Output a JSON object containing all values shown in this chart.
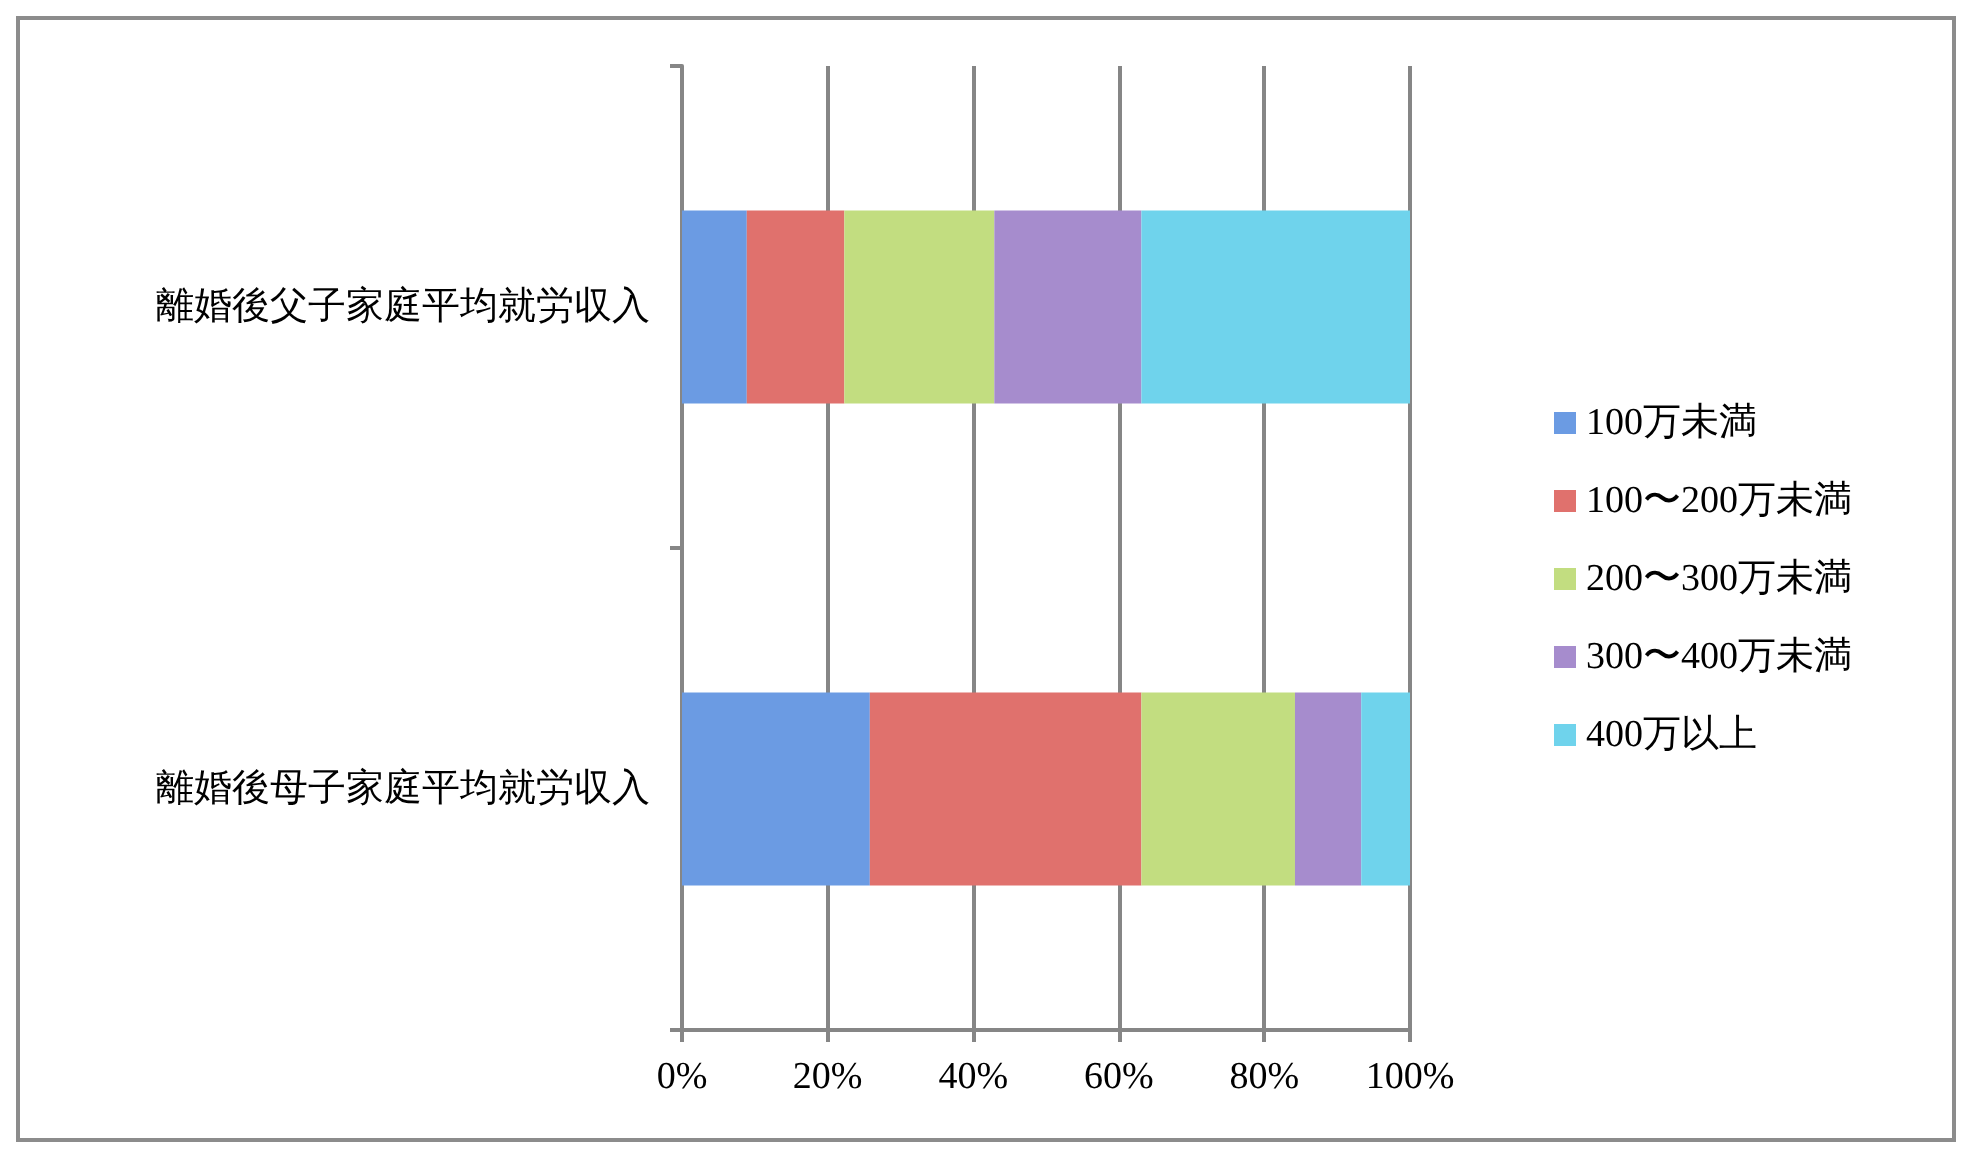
{
  "chart_data": {
    "type": "bar",
    "orientation": "horizontal",
    "stacked": true,
    "categories": [
      "離婚後父子家庭平均就労収入",
      "離婚後母子家庭平均就労収入"
    ],
    "series": [
      {
        "name": "100万未満",
        "color": "#6b9be3",
        "values": [
          8.9,
          25.8
        ]
      },
      {
        "name": "100〜200万未満",
        "color": "#e0716d",
        "values": [
          13.4,
          37.3
        ]
      },
      {
        "name": "200〜300万未満",
        "color": "#c2dd80",
        "values": [
          20.6,
          21.1
        ]
      },
      {
        "name": "300〜400万未満",
        "color": "#a68ccd",
        "values": [
          20.2,
          9.1
        ]
      },
      {
        "name": "400万以上",
        "color": "#6fd3ec",
        "values": [
          36.9,
          6.7
        ]
      }
    ],
    "xlim": [
      0,
      100
    ],
    "xticks": [
      {
        "value": 0,
        "label": "0%"
      },
      {
        "value": 20,
        "label": "20%"
      },
      {
        "value": 40,
        "label": "40%"
      },
      {
        "value": 60,
        "label": "60%"
      },
      {
        "value": 80,
        "label": "80%"
      },
      {
        "value": 100,
        "label": "100%"
      }
    ],
    "grid": "x",
    "legend": "right"
  }
}
